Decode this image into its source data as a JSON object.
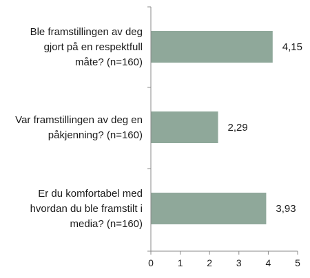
{
  "chart_data": {
    "type": "bar",
    "orientation": "horizontal",
    "categories": [
      [
        "Ble framstillingen av deg",
        "gjort på en respektfull",
        "måte? (n=160)"
      ],
      [
        "Var framstillingen av deg en",
        "påkjenning? (n=160)"
      ],
      [
        "Er du komfortabel med",
        "hvordan du ble framstilt i",
        "media? (n=160)"
      ]
    ],
    "values": [
      4.15,
      2.29,
      3.93
    ],
    "value_labels": [
      "4,15",
      "2,29",
      "3,93"
    ],
    "xlim": [
      0,
      5
    ],
    "ticks": [
      0,
      1,
      2,
      3,
      4,
      5
    ],
    "tick_labels": [
      "0",
      "1",
      "2",
      "3",
      "4",
      "5"
    ],
    "grid": false,
    "bar_color": "#8fa89a",
    "axis_color": "#888888"
  }
}
